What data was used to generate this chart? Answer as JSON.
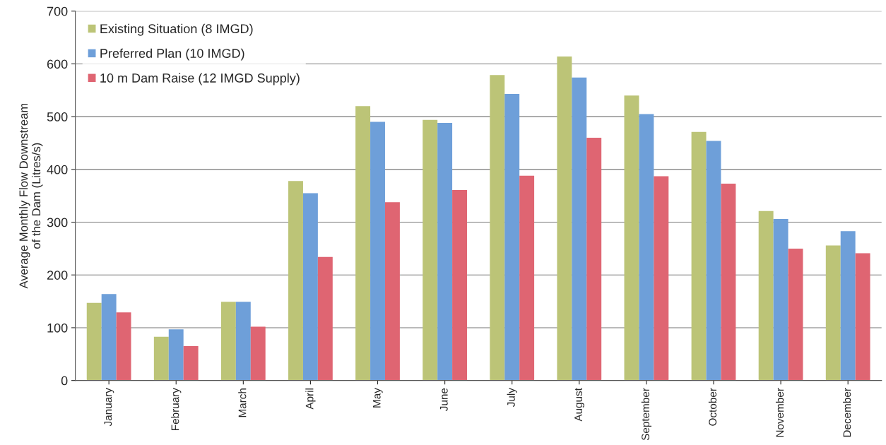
{
  "chart_data": {
    "type": "bar",
    "ylabel": "Average Monthly Flow Downstream\nof the Dam (Litres/s)",
    "categories": [
      "January",
      "February",
      "March",
      "April",
      "May",
      "June",
      "July",
      "August",
      "September",
      "October",
      "November",
      "December"
    ],
    "series": [
      {
        "name": "Existing Situation (8 IMGD)",
        "color": "#bcc477",
        "values": [
          147,
          83,
          149,
          378,
          520,
          494,
          579,
          614,
          540,
          471,
          321,
          256
        ]
      },
      {
        "name": "Preferred Plan (10 IMGD)",
        "color": "#6e9fd9",
        "values": [
          164,
          97,
          149,
          355,
          490,
          488,
          543,
          574,
          505,
          454,
          306,
          283
        ]
      },
      {
        "name": "10 m Dam Raise (12 IMGD Supply)",
        "color": "#df6572",
        "values": [
          129,
          65,
          102,
          234,
          338,
          361,
          388,
          460,
          387,
          373,
          250,
          241
        ]
      }
    ],
    "ylim": [
      0,
      700
    ],
    "yticks": [
      0,
      100,
      200,
      300,
      400,
      500,
      600,
      700
    ],
    "grid": "y",
    "legend": "top left"
  }
}
